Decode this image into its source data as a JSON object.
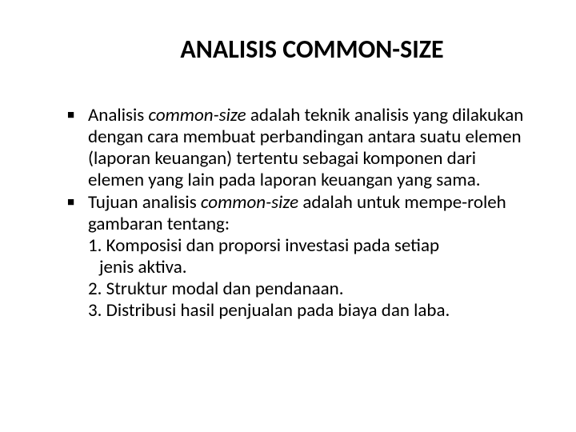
{
  "slide": {
    "title": "ANALISIS COMMON-SIZE",
    "title_fontsize": 32,
    "title_weight": "bold",
    "body_fontsize": 23,
    "background_color": "#ffffff",
    "text_color": "#000000",
    "bullets": [
      {
        "segments": [
          {
            "text": "Analisis ",
            "italic": false
          },
          {
            "text": "common-size",
            "italic": true
          },
          {
            "text": " adalah teknik analisis yang dilakukan dengan cara membuat perbandingan antara suatu elemen (laporan keuangan) tertentu sebagai komponen dari elemen yang lain pada laporan keuangan yang sama.",
            "italic": false
          }
        ]
      },
      {
        "segments": [
          {
            "text": "Tujuan analisis ",
            "italic": false
          },
          {
            "text": "common-size",
            "italic": true
          },
          {
            "text": " adalah untuk mempe-roleh gambaran tentang:",
            "italic": false
          }
        ],
        "sublist": [
          {
            "text": "1. Komposisi dan proporsi investasi pada setiap",
            "indent": false
          },
          {
            "text": "jenis aktiva.",
            "indent": true
          },
          {
            "text": "2. Struktur modal dan pendanaan.",
            "indent": false
          },
          {
            "text": "3. Distribusi hasil penjualan pada biaya dan laba.",
            "indent": false
          }
        ]
      }
    ]
  }
}
